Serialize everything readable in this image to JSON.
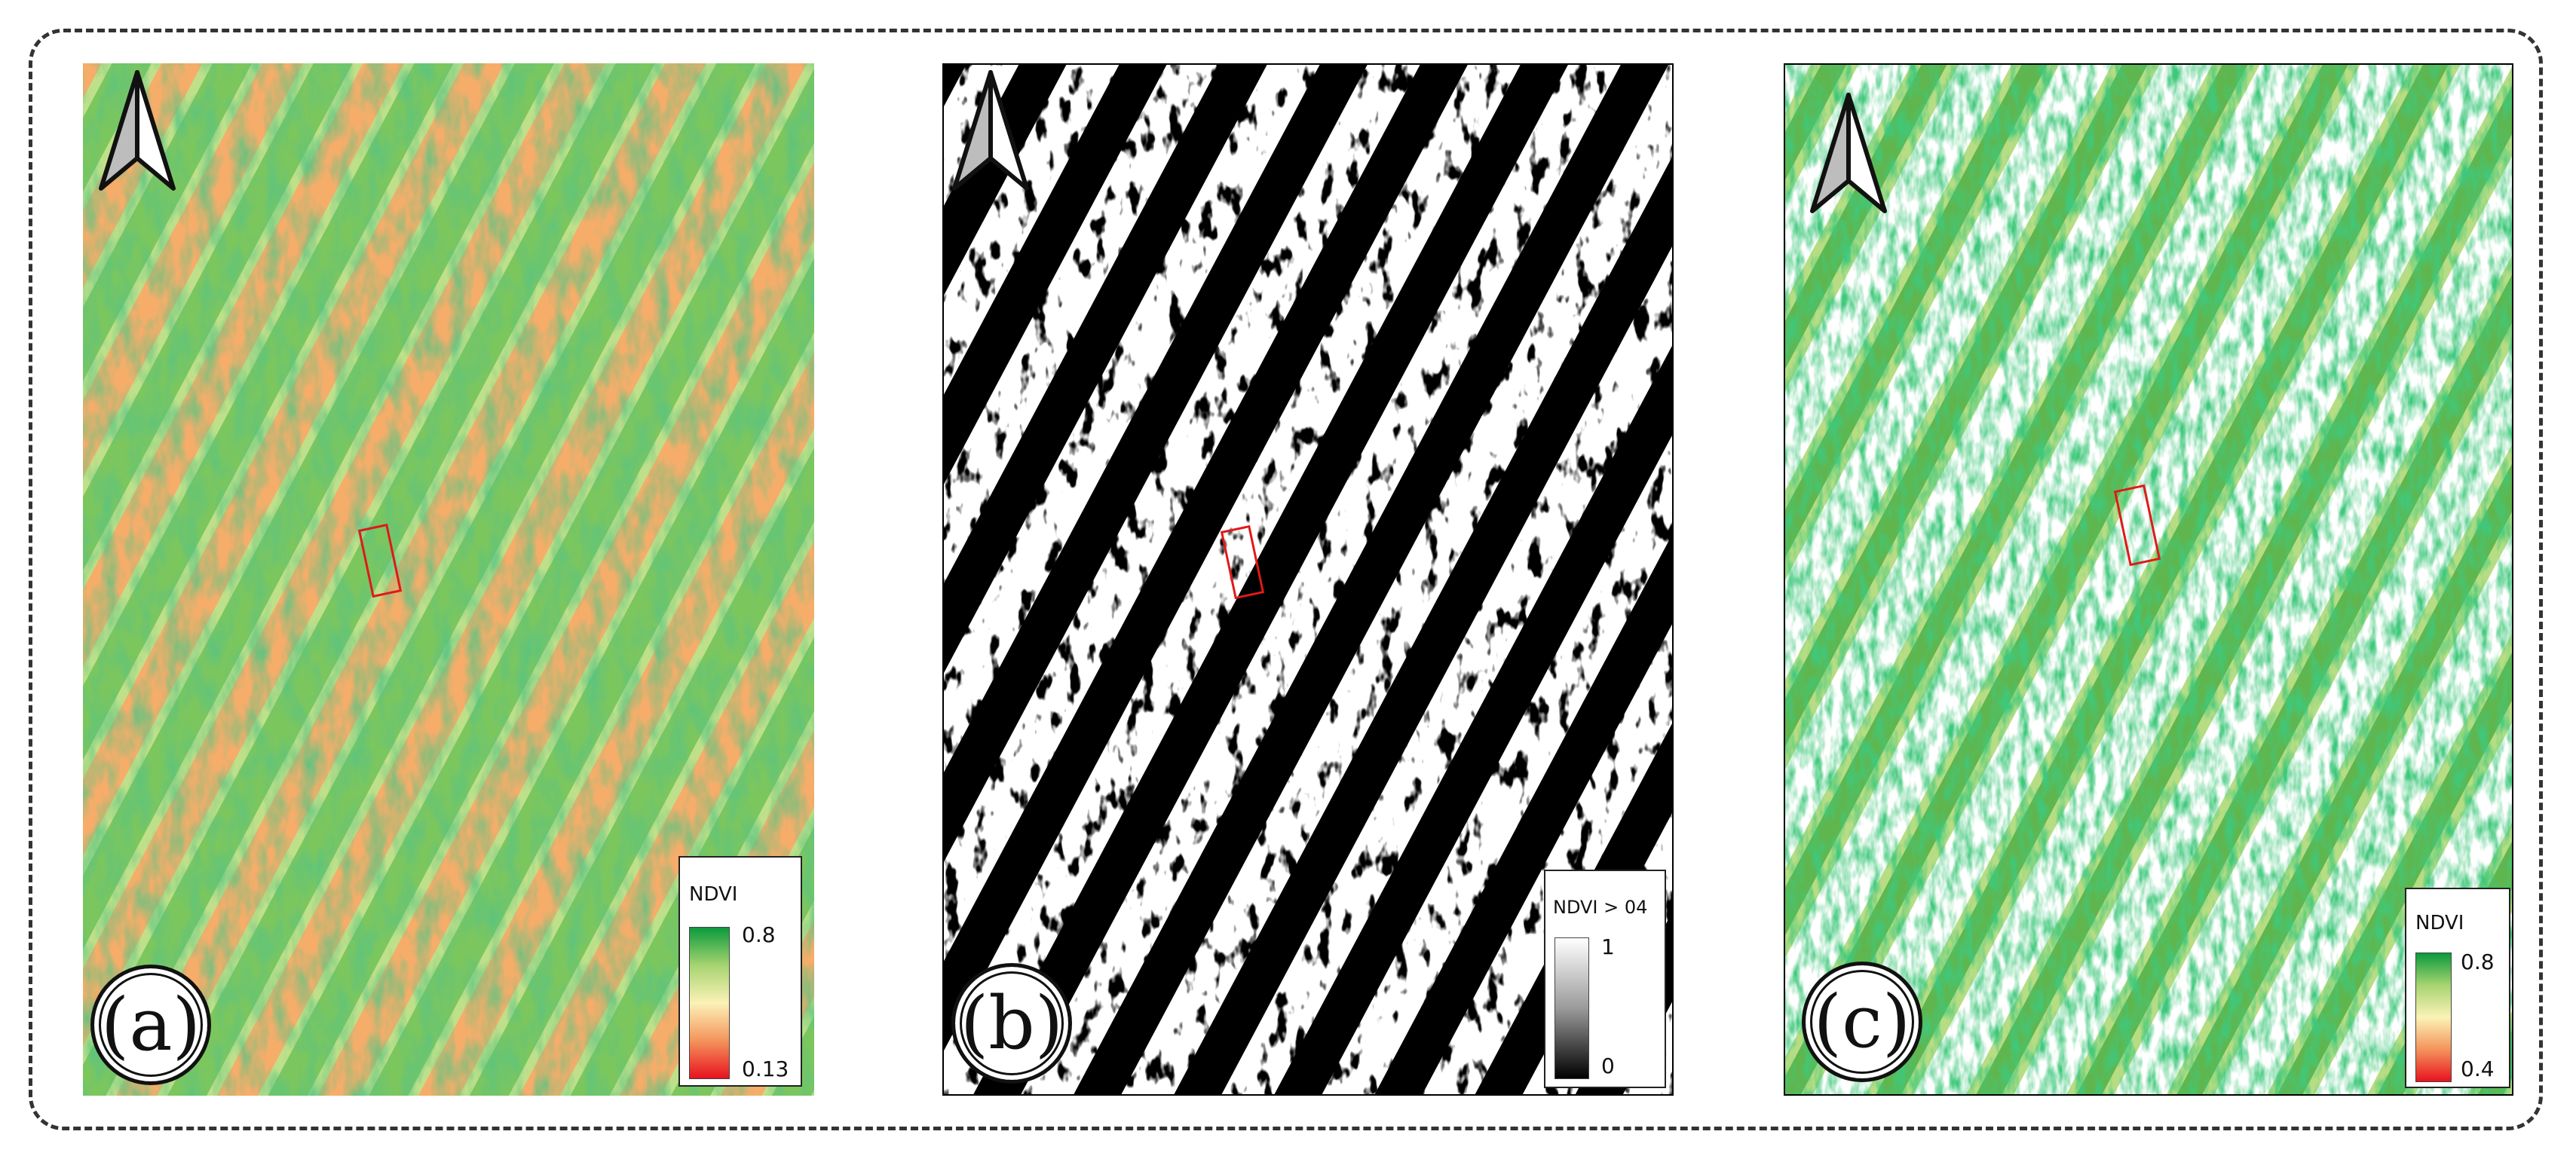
{
  "panels": [
    {
      "id": "a",
      "label": "(a)",
      "legend": {
        "title": "NDVI",
        "max": "0.8",
        "min": "0.13",
        "ramp": [
          "#0a9a3c",
          "#a7d471",
          "#fbf2b6",
          "#f4945c",
          "#e8121f"
        ]
      },
      "style": "ndvi-full"
    },
    {
      "id": "b",
      "label": "(b)",
      "legend": {
        "title": "NDVI > 04",
        "max": "1",
        "min": "0",
        "ramp": [
          "#ffffff",
          "#9a9a9a",
          "#000000"
        ]
      },
      "style": "binary-mask"
    },
    {
      "id": "c",
      "label": "(c)",
      "legend": {
        "title": "NDVI",
        "max": "0.8",
        "min": "0.4",
        "ramp": [
          "#0a9a3c",
          "#a7d471",
          "#fbf2b6",
          "#f4945c",
          "#e8121f"
        ]
      },
      "style": "ndvi-masked"
    }
  ],
  "colors": {
    "frame": "#333333",
    "roi": "#e01919",
    "green_dark": "#1a9641",
    "green_light": "#a6d96a",
    "yellow": "#fff3b0",
    "orange": "#f4a060",
    "red": "#e8321f"
  },
  "icons": {
    "north_arrow": "north-arrow-icon"
  }
}
